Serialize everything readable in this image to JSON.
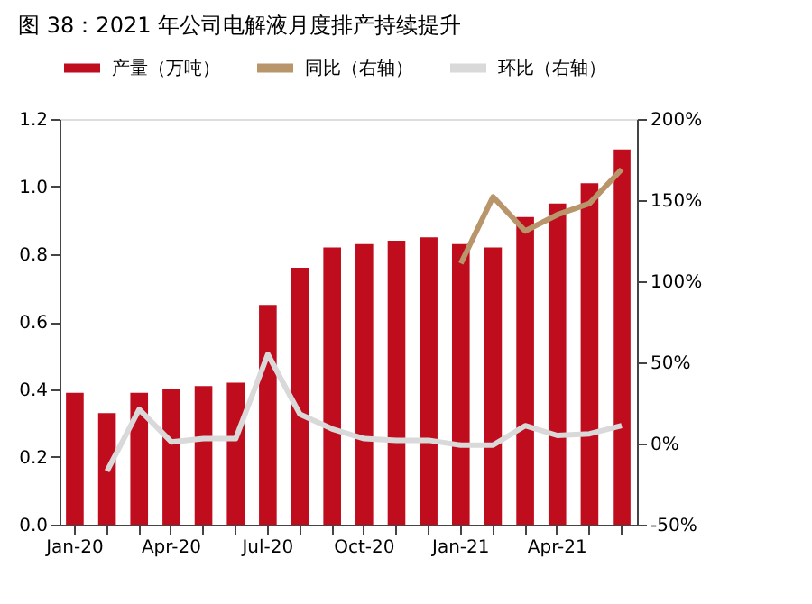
{
  "chart_data": {
    "type": "bar",
    "title": "图 38：2021 年公司电解液月度排产持续提升",
    "categories": [
      "Jan-20",
      null,
      null,
      "Apr-20",
      null,
      null,
      "Jul-20",
      null,
      null,
      "Oct-20",
      null,
      null,
      "Jan-21",
      null,
      null,
      "Apr-21",
      null,
      null
    ],
    "series": [
      {
        "name": "产量（万吨）",
        "color": "#c00d1e",
        "values": [
          0.39,
          0.33,
          0.39,
          0.4,
          0.41,
          0.42,
          0.65,
          0.76,
          0.82,
          0.83,
          0.84,
          0.85,
          0.83,
          0.82,
          0.91,
          0.95,
          1.01,
          1.11
        ]
      },
      {
        "name": "同比（右轴）",
        "type": "line",
        "axis": "y2",
        "color": "#b8956a",
        "values": [
          null,
          null,
          null,
          null,
          null,
          null,
          null,
          null,
          null,
          null,
          null,
          null,
          111,
          152,
          131,
          141,
          148,
          169
        ]
      },
      {
        "name": "环比（右轴）",
        "type": "line",
        "axis": "y2",
        "color": "#d9d9d9",
        "values": [
          null,
          -17,
          21,
          1,
          3,
          3,
          55,
          18,
          9,
          3,
          2,
          2,
          -1,
          -1,
          11,
          5,
          6,
          11
        ]
      }
    ],
    "ylim": [
      0,
      1.2
    ],
    "yticks": [
      {
        "value": 0,
        "label": "0.0"
      },
      {
        "value": 0.2,
        "label": "0.2"
      },
      {
        "value": 0.4,
        "label": "0.4"
      },
      {
        "value": 0.6,
        "label": "0.6"
      },
      {
        "value": 0.8,
        "label": "0.8"
      },
      {
        "value": 1.0,
        "label": "1.0"
      },
      {
        "value": 1.2,
        "label": "1.2"
      }
    ],
    "y2lim": [
      -50,
      200
    ],
    "y2ticks": [
      {
        "value": -50,
        "label": "-50%"
      },
      {
        "value": 0,
        "label": "0%"
      },
      {
        "value": 50,
        "label": "50%"
      },
      {
        "value": 100,
        "label": "100%"
      },
      {
        "value": 150,
        "label": "150%"
      },
      {
        "value": 200,
        "label": "200%"
      }
    ],
    "legend": "top",
    "grid": false
  }
}
